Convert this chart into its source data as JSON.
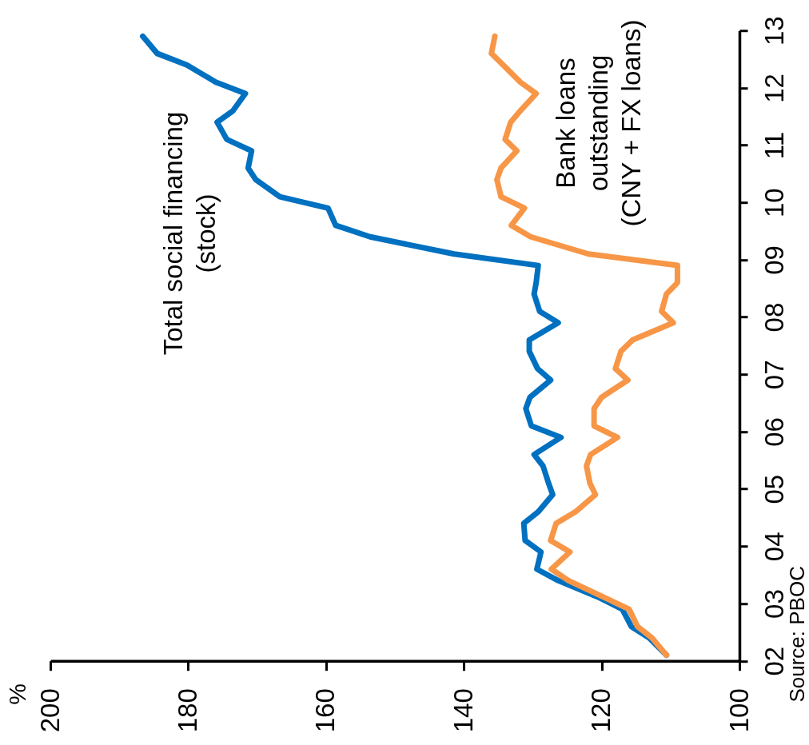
{
  "chart_data": {
    "type": "line",
    "series": [
      {
        "name": "Total social financing\n(stock)",
        "color": "#0070c0",
        "x": [
          110.6,
          113.1,
          115.7,
          117.0,
          120.3,
          126.3,
          129.4,
          128.8,
          131.1,
          131.3,
          129.2,
          127.1,
          127.7,
          128.5,
          129.8,
          125.9,
          130.2,
          131.0,
          130.4,
          127.4,
          129.3,
          130.5,
          130.5,
          126.3,
          129.0,
          129.8,
          129.5,
          129.2,
          141.4,
          153.6,
          158.6,
          159.7,
          166.7,
          170.2,
          171.3,
          170.8,
          174.4,
          175.8,
          173.5,
          171.7,
          176.0,
          180.2,
          184.5,
          186.6
        ],
        "values": [
          2002.1,
          2002.4,
          2002.6,
          2002.9,
          2003.1,
          2003.4,
          2003.6,
          2003.9,
          2004.1,
          2004.4,
          2004.6,
          2004.9,
          2005.1,
          2005.4,
          2005.6,
          2005.9,
          2006.1,
          2006.4,
          2006.6,
          2006.9,
          2007.1,
          2007.4,
          2007.6,
          2007.9,
          2008.1,
          2008.4,
          2008.6,
          2008.9,
          2009.1,
          2009.4,
          2009.6,
          2009.9,
          2010.1,
          2010.4,
          2010.6,
          2010.9,
          2011.1,
          2011.4,
          2011.6,
          2011.9,
          2012.1,
          2012.4,
          2012.6,
          2012.9
        ]
      },
      {
        "name": "Bank loans\noutstanding\n(CNY + FX loans)",
        "color": "#f79646",
        "x": [
          110.6,
          112.7,
          114.8,
          116.0,
          119.5,
          124.8,
          127.3,
          124.6,
          127.4,
          126.6,
          123.8,
          120.9,
          121.7,
          122.2,
          121.6,
          117.7,
          121.1,
          121.1,
          120.0,
          116.2,
          118.0,
          117.2,
          115.5,
          109.6,
          111.3,
          110.6,
          109.0,
          109.0,
          121.9,
          130.3,
          133.1,
          131.2,
          134.6,
          135.2,
          134.6,
          132.3,
          134.0,
          133.2,
          131.8,
          129.5,
          131.8,
          134.3,
          136.0,
          135.5
        ],
        "values": [
          2002.1,
          2002.4,
          2002.6,
          2002.9,
          2003.1,
          2003.4,
          2003.6,
          2003.9,
          2004.1,
          2004.4,
          2004.6,
          2004.9,
          2005.1,
          2005.4,
          2005.6,
          2005.9,
          2006.1,
          2006.4,
          2006.6,
          2006.9,
          2007.1,
          2007.4,
          2007.6,
          2007.9,
          2008.1,
          2008.4,
          2008.6,
          2008.9,
          2009.1,
          2009.4,
          2009.6,
          2009.9,
          2010.1,
          2010.4,
          2010.6,
          2010.9,
          2011.1,
          2011.4,
          2011.6,
          2011.9,
          2012.1,
          2012.4,
          2012.6,
          2012.9
        ]
      }
    ],
    "xlim": [
      200,
      100
    ],
    "xticks": [
      200,
      180,
      160,
      140,
      120,
      100
    ],
    "ylim": [
      2002,
      2013
    ],
    "yticks": [
      {
        "value": 2002,
        "label": "02"
      },
      {
        "value": 2003,
        "label": "03"
      },
      {
        "value": 2004,
        "label": "04"
      },
      {
        "value": 2005,
        "label": "05"
      },
      {
        "value": 2006,
        "label": "06"
      },
      {
        "value": 2007,
        "label": "07"
      },
      {
        "value": 2008,
        "label": "08"
      },
      {
        "value": 2009,
        "label": "09"
      },
      {
        "value": 2010,
        "label": "10"
      },
      {
        "value": 2011,
        "label": "11"
      },
      {
        "value": 2012,
        "label": "12"
      },
      {
        "value": 2013,
        "label": "13"
      }
    ],
    "annotations": [
      "%",
      "Source: PBOC"
    ]
  }
}
